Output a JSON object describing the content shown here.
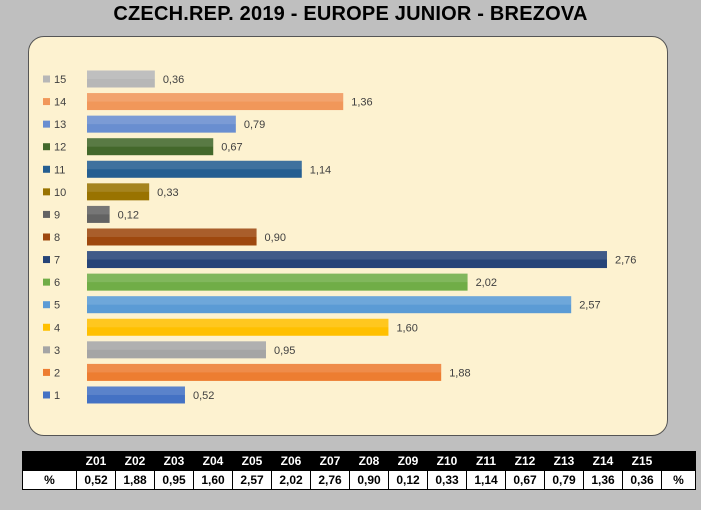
{
  "chart_data": {
    "type": "bar",
    "orientation": "horizontal",
    "title": "CZECH.REP. 2019 - EUROPE JUNIOR - BREZOVA",
    "categories": [
      "1",
      "2",
      "3",
      "4",
      "5",
      "6",
      "7",
      "8",
      "9",
      "10",
      "11",
      "12",
      "13",
      "14",
      "15"
    ],
    "values": [
      0.52,
      1.88,
      0.95,
      1.6,
      2.57,
      2.02,
      2.76,
      0.9,
      0.12,
      0.33,
      1.14,
      0.67,
      0.79,
      1.36,
      0.36
    ],
    "value_labels": [
      "0,52",
      "1,88",
      "0,95",
      "1,60",
      "2,57",
      "2,02",
      "2,76",
      "0,90",
      "0,12",
      "0,33",
      "1,14",
      "0,67",
      "0,79",
      "1,36",
      "0,36"
    ],
    "colors": [
      "#4472c4",
      "#ed7d31",
      "#a5a5a5",
      "#ffc000",
      "#5b9bd5",
      "#70ad47",
      "#264478",
      "#9e480e",
      "#636363",
      "#997300",
      "#255e91",
      "#43682b",
      "#698ed0",
      "#f1975a",
      "#b7b7b7"
    ],
    "xlim": [
      0,
      3
    ],
    "grid": false,
    "legend": "left"
  },
  "table": {
    "headers": [
      "Z01",
      "Z02",
      "Z03",
      "Z04",
      "Z05",
      "Z06",
      "Z07",
      "Z08",
      "Z09",
      "Z10",
      "Z11",
      "Z12",
      "Z13",
      "Z14",
      "Z15"
    ],
    "row_label": "%",
    "row_suffix": "%",
    "values": [
      "0,52",
      "1,88",
      "0,95",
      "1,60",
      "2,57",
      "2,02",
      "2,76",
      "0,90",
      "0,12",
      "0,33",
      "1,14",
      "0,67",
      "0,79",
      "1,36",
      "0,36"
    ]
  }
}
